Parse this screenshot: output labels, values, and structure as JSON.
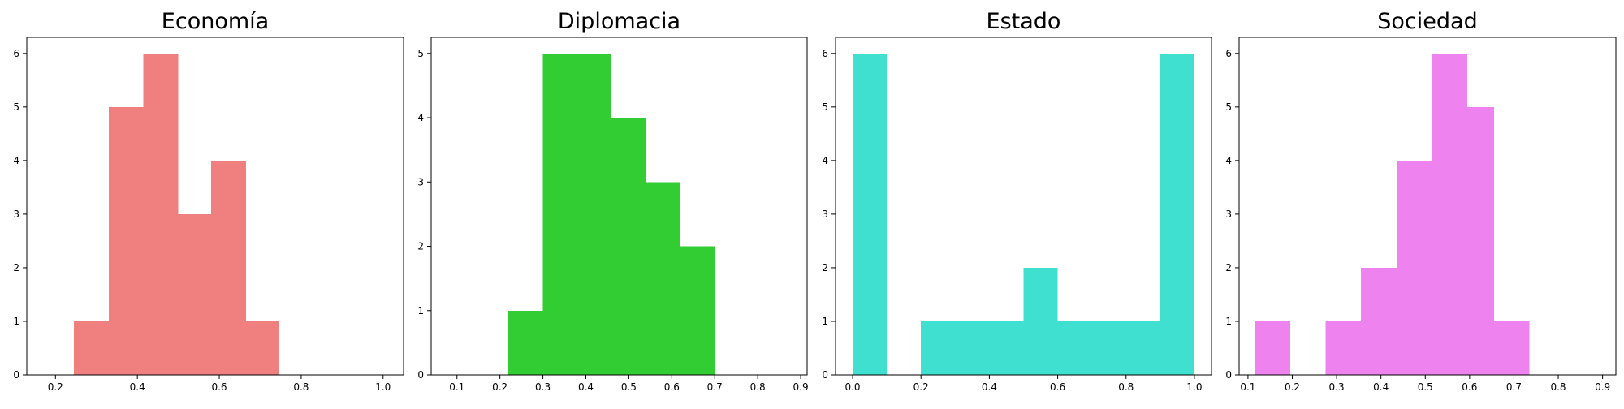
{
  "chart_data": [
    {
      "type": "bar",
      "title": "Economía",
      "color": "#F08080",
      "bins": [
        [
          0.245,
          0.33
        ],
        [
          0.33,
          0.415
        ],
        [
          0.415,
          0.5
        ],
        [
          0.5,
          0.58
        ],
        [
          0.58,
          0.665
        ],
        [
          0.665,
          0.745
        ]
      ],
      "values": [
        1,
        5,
        6,
        3,
        4,
        1
      ],
      "xlim": [
        0.13,
        1.05
      ],
      "ylim": [
        0,
        6.3
      ],
      "xticks": [
        0.2,
        0.4,
        0.6,
        0.8,
        1.0
      ],
      "xtick_labels": [
        "0.2",
        "0.4",
        "0.6",
        "0.8",
        "1.0"
      ],
      "yticks": [
        0,
        1,
        2,
        3,
        4,
        5,
        6
      ],
      "ytick_labels": [
        "0",
        "1",
        "2",
        "3",
        "4",
        "5",
        "6"
      ],
      "grid": false,
      "xlabel": "",
      "ylabel": ""
    },
    {
      "type": "bar",
      "title": "Diplomacia",
      "color": "#32CD32",
      "bins": [
        [
          0.22,
          0.3
        ],
        [
          0.3,
          0.38
        ],
        [
          0.38,
          0.46
        ],
        [
          0.46,
          0.54
        ],
        [
          0.54,
          0.62
        ],
        [
          0.62,
          0.7
        ]
      ],
      "values": [
        1,
        5,
        5,
        4,
        3,
        2
      ],
      "xlim": [
        0.04,
        0.915
      ],
      "ylim": [
        0,
        5.25
      ],
      "xticks": [
        0.1,
        0.2,
        0.3,
        0.4,
        0.5,
        0.6,
        0.7,
        0.8,
        0.9
      ],
      "xtick_labels": [
        "0.1",
        "0.2",
        "0.3",
        "0.4",
        "0.5",
        "0.6",
        "0.7",
        "0.8",
        "0.9"
      ],
      "yticks": [
        0,
        1,
        2,
        3,
        4,
        5
      ],
      "ytick_labels": [
        "0",
        "1",
        "2",
        "3",
        "4",
        "5"
      ],
      "grid": false,
      "xlabel": "",
      "ylabel": ""
    },
    {
      "type": "bar",
      "title": "Estado",
      "color": "#40E0D0",
      "bins": [
        [
          0.0,
          0.1
        ],
        [
          0.1,
          0.2
        ],
        [
          0.2,
          0.3
        ],
        [
          0.3,
          0.4
        ],
        [
          0.4,
          0.5
        ],
        [
          0.5,
          0.6
        ],
        [
          0.6,
          0.7
        ],
        [
          0.7,
          0.8
        ],
        [
          0.8,
          0.9
        ],
        [
          0.9,
          1.0
        ]
      ],
      "values": [
        6,
        0,
        1,
        1,
        1,
        2,
        1,
        1,
        1,
        6
      ],
      "xlim": [
        -0.05,
        1.05
      ],
      "ylim": [
        0,
        6.3
      ],
      "xticks": [
        0.0,
        0.2,
        0.4,
        0.6,
        0.8,
        1.0
      ],
      "xtick_labels": [
        "0.0",
        "0.2",
        "0.4",
        "0.6",
        "0.8",
        "1.0"
      ],
      "yticks": [
        0,
        1,
        2,
        3,
        4,
        5,
        6
      ],
      "ytick_labels": [
        "0",
        "1",
        "2",
        "3",
        "4",
        "5",
        "6"
      ],
      "grid": false,
      "xlabel": "",
      "ylabel": ""
    },
    {
      "type": "bar",
      "title": "Sociedad",
      "color": "#EE82EE",
      "bins": [
        [
          0.115,
          0.195
        ],
        [
          0.195,
          0.275
        ],
        [
          0.275,
          0.355
        ],
        [
          0.355,
          0.435
        ],
        [
          0.435,
          0.515
        ],
        [
          0.515,
          0.595
        ],
        [
          0.595,
          0.655
        ],
        [
          0.655,
          0.735
        ]
      ],
      "values": [
        1,
        0,
        1,
        2,
        4,
        6,
        5,
        1
      ],
      "xlim": [
        0.08,
        0.93
      ],
      "ylim": [
        0,
        6.3
      ],
      "xticks": [
        0.1,
        0.2,
        0.3,
        0.4,
        0.5,
        0.6,
        0.7,
        0.8,
        0.9
      ],
      "xtick_labels": [
        "0.1",
        "0.2",
        "0.3",
        "0.4",
        "0.5",
        "0.6",
        "0.7",
        "0.8",
        "0.9"
      ],
      "yticks": [
        0,
        1,
        2,
        3,
        4,
        5,
        6
      ],
      "ytick_labels": [
        "0",
        "1",
        "2",
        "3",
        "4",
        "5",
        "6"
      ],
      "grid": false,
      "xlabel": "",
      "ylabel": ""
    }
  ]
}
